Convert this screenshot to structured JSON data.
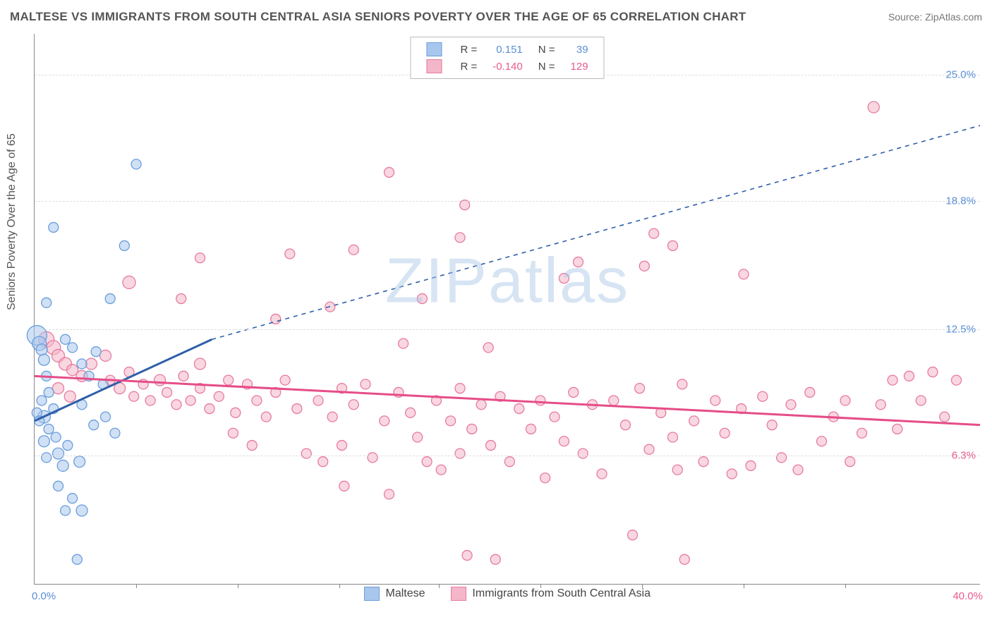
{
  "title": "MALTESE VS IMMIGRANTS FROM SOUTH CENTRAL ASIA SENIORS POVERTY OVER THE AGE OF 65 CORRELATION CHART",
  "source": "Source: ZipAtlas.com",
  "watermark_a": "ZIP",
  "watermark_b": "atlas",
  "chart": {
    "type": "scatter",
    "xlim": [
      0,
      40
    ],
    "ylim": [
      0,
      27
    ],
    "ylabel": "Seniors Poverty Over the Age of 65",
    "x_left_label": "0.0%",
    "x_right_label": "40.0%",
    "x_left_color": "#5a8fd6",
    "x_right_color": "#e85a8f",
    "xtick_positions": [
      4.3,
      8.6,
      12.9,
      17.1,
      21.4,
      25.7,
      30.0,
      34.3
    ],
    "y_gridlines": [
      {
        "value": 6.3,
        "label": "6.3%",
        "color": "#e85a8f"
      },
      {
        "value": 12.5,
        "label": "12.5%",
        "color": "#5a8fd6"
      },
      {
        "value": 18.8,
        "label": "18.8%",
        "color": "#5a8fd6"
      },
      {
        "value": 25.0,
        "label": "25.0%",
        "color": "#5a8fd6"
      }
    ],
    "grid_color": "#dddddd",
    "axis_color": "#888888",
    "background_color": "#ffffff",
    "series": [
      {
        "name": "Maltese",
        "R": "0.151",
        "N": "39",
        "fill": "#a9c7ec",
        "fill_opacity": 0.55,
        "stroke": "#6a9edc",
        "trend_color": "#2f5fa8",
        "trend_solid": {
          "x1": 0,
          "y1": 8.0,
          "x2": 7.5,
          "y2": 12.0
        },
        "trend_dashed": {
          "x1": 7.5,
          "y1": 12.0,
          "x2": 40,
          "y2": 22.5
        },
        "points": [
          {
            "x": 0.1,
            "y": 12.2,
            "r": 14
          },
          {
            "x": 0.2,
            "y": 11.8,
            "r": 10
          },
          {
            "x": 0.3,
            "y": 11.5,
            "r": 8
          },
          {
            "x": 0.4,
            "y": 11.0,
            "r": 8
          },
          {
            "x": 0.5,
            "y": 10.2,
            "r": 7
          },
          {
            "x": 0.6,
            "y": 9.4,
            "r": 7
          },
          {
            "x": 0.3,
            "y": 9.0,
            "r": 7
          },
          {
            "x": 0.4,
            "y": 8.2,
            "r": 9
          },
          {
            "x": 0.8,
            "y": 8.6,
            "r": 7
          },
          {
            "x": 0.6,
            "y": 7.6,
            "r": 7
          },
          {
            "x": 0.4,
            "y": 7.0,
            "r": 8
          },
          {
            "x": 0.9,
            "y": 7.2,
            "r": 7
          },
          {
            "x": 0.5,
            "y": 6.2,
            "r": 7
          },
          {
            "x": 1.0,
            "y": 6.4,
            "r": 8
          },
          {
            "x": 1.4,
            "y": 6.8,
            "r": 7
          },
          {
            "x": 1.2,
            "y": 5.8,
            "r": 8
          },
          {
            "x": 1.9,
            "y": 6.0,
            "r": 8
          },
          {
            "x": 1.0,
            "y": 4.8,
            "r": 7
          },
          {
            "x": 1.6,
            "y": 4.2,
            "r": 7
          },
          {
            "x": 2.0,
            "y": 3.6,
            "r": 8
          },
          {
            "x": 1.3,
            "y": 3.6,
            "r": 7
          },
          {
            "x": 1.8,
            "y": 1.2,
            "r": 7
          },
          {
            "x": 0.5,
            "y": 13.8,
            "r": 7
          },
          {
            "x": 0.8,
            "y": 17.5,
            "r": 7
          },
          {
            "x": 1.3,
            "y": 12.0,
            "r": 7
          },
          {
            "x": 1.6,
            "y": 11.6,
            "r": 7
          },
          {
            "x": 2.0,
            "y": 10.8,
            "r": 7
          },
          {
            "x": 2.3,
            "y": 10.2,
            "r": 7
          },
          {
            "x": 2.6,
            "y": 11.4,
            "r": 7
          },
          {
            "x": 2.9,
            "y": 9.8,
            "r": 7
          },
          {
            "x": 0.1,
            "y": 8.4,
            "r": 7
          },
          {
            "x": 0.2,
            "y": 8.0,
            "r": 7
          },
          {
            "x": 3.0,
            "y": 8.2,
            "r": 7
          },
          {
            "x": 3.4,
            "y": 7.4,
            "r": 7
          },
          {
            "x": 3.8,
            "y": 16.6,
            "r": 7
          },
          {
            "x": 3.2,
            "y": 14.0,
            "r": 7
          },
          {
            "x": 4.3,
            "y": 20.6,
            "r": 7
          },
          {
            "x": 2.5,
            "y": 7.8,
            "r": 7
          },
          {
            "x": 2.0,
            "y": 8.8,
            "r": 7
          }
        ]
      },
      {
        "name": "Immigrants from South Central Asia",
        "R": "-0.140",
        "N": "129",
        "fill": "#f4b6c9",
        "fill_opacity": 0.55,
        "stroke": "#e77ba0",
        "trend_color": "#e64d88",
        "trend_solid": {
          "x1": 0,
          "y1": 10.2,
          "x2": 40,
          "y2": 7.8
        },
        "points": [
          {
            "x": 0.5,
            "y": 12.0,
            "r": 11
          },
          {
            "x": 0.8,
            "y": 11.6,
            "r": 10
          },
          {
            "x": 1.0,
            "y": 11.2,
            "r": 9
          },
          {
            "x": 1.3,
            "y": 10.8,
            "r": 9
          },
          {
            "x": 1.6,
            "y": 10.5,
            "r": 8
          },
          {
            "x": 2.0,
            "y": 10.2,
            "r": 8
          },
          {
            "x": 2.4,
            "y": 10.8,
            "r": 8
          },
          {
            "x": 1.0,
            "y": 9.6,
            "r": 8
          },
          {
            "x": 1.5,
            "y": 9.2,
            "r": 8
          },
          {
            "x": 3.0,
            "y": 11.2,
            "r": 8
          },
          {
            "x": 3.2,
            "y": 10.0,
            "r": 7
          },
          {
            "x": 3.6,
            "y": 9.6,
            "r": 8
          },
          {
            "x": 4.0,
            "y": 10.4,
            "r": 7
          },
          {
            "x": 4.2,
            "y": 9.2,
            "r": 7
          },
          {
            "x": 4.6,
            "y": 9.8,
            "r": 7
          },
          {
            "x": 4.9,
            "y": 9.0,
            "r": 7
          },
          {
            "x": 5.3,
            "y": 10.0,
            "r": 8
          },
          {
            "x": 5.6,
            "y": 9.4,
            "r": 7
          },
          {
            "x": 6.0,
            "y": 8.8,
            "r": 7
          },
          {
            "x": 6.3,
            "y": 10.2,
            "r": 7
          },
          {
            "x": 6.6,
            "y": 9.0,
            "r": 7
          },
          {
            "x": 7.0,
            "y": 9.6,
            "r": 7
          },
          {
            "x": 7.4,
            "y": 8.6,
            "r": 7
          },
          {
            "x": 7.8,
            "y": 9.2,
            "r": 7
          },
          {
            "x": 8.2,
            "y": 10.0,
            "r": 7
          },
          {
            "x": 8.5,
            "y": 8.4,
            "r": 7
          },
          {
            "x": 9.0,
            "y": 9.8,
            "r": 7
          },
          {
            "x": 9.4,
            "y": 9.0,
            "r": 7
          },
          {
            "x": 9.8,
            "y": 8.2,
            "r": 7
          },
          {
            "x": 10.2,
            "y": 9.4,
            "r": 7
          },
          {
            "x": 10.6,
            "y": 10.0,
            "r": 7
          },
          {
            "x": 11.1,
            "y": 8.6,
            "r": 7
          },
          {
            "x": 11.5,
            "y": 6.4,
            "r": 7
          },
          {
            "x": 12.0,
            "y": 9.0,
            "r": 7
          },
          {
            "x": 12.2,
            "y": 6.0,
            "r": 7
          },
          {
            "x": 12.6,
            "y": 8.2,
            "r": 7
          },
          {
            "x": 13.0,
            "y": 9.6,
            "r": 7
          },
          {
            "x": 13.0,
            "y": 6.8,
            "r": 7
          },
          {
            "x": 13.1,
            "y": 4.8,
            "r": 7
          },
          {
            "x": 13.5,
            "y": 8.8,
            "r": 7
          },
          {
            "x": 14.0,
            "y": 9.8,
            "r": 7
          },
          {
            "x": 14.3,
            "y": 6.2,
            "r": 7
          },
          {
            "x": 14.8,
            "y": 8.0,
            "r": 7
          },
          {
            "x": 15.0,
            "y": 4.4,
            "r": 7
          },
          {
            "x": 15.4,
            "y": 9.4,
            "r": 7
          },
          {
            "x": 15.9,
            "y": 8.4,
            "r": 7
          },
          {
            "x": 16.2,
            "y": 7.2,
            "r": 7
          },
          {
            "x": 16.6,
            "y": 6.0,
            "r": 7
          },
          {
            "x": 17.0,
            "y": 9.0,
            "r": 7
          },
          {
            "x": 17.2,
            "y": 5.6,
            "r": 7
          },
          {
            "x": 17.6,
            "y": 8.0,
            "r": 7
          },
          {
            "x": 18.0,
            "y": 6.4,
            "r": 7
          },
          {
            "x": 18.0,
            "y": 9.6,
            "r": 7
          },
          {
            "x": 18.3,
            "y": 1.4,
            "r": 7
          },
          {
            "x": 18.5,
            "y": 7.6,
            "r": 7
          },
          {
            "x": 18.9,
            "y": 8.8,
            "r": 7
          },
          {
            "x": 19.3,
            "y": 6.8,
            "r": 7
          },
          {
            "x": 19.5,
            "y": 1.2,
            "r": 7
          },
          {
            "x": 19.7,
            "y": 9.2,
            "r": 7
          },
          {
            "x": 20.1,
            "y": 6.0,
            "r": 7
          },
          {
            "x": 20.5,
            "y": 8.6,
            "r": 7
          },
          {
            "x": 21.0,
            "y": 7.6,
            "r": 7
          },
          {
            "x": 21.4,
            "y": 9.0,
            "r": 7
          },
          {
            "x": 21.6,
            "y": 5.2,
            "r": 7
          },
          {
            "x": 22.0,
            "y": 8.2,
            "r": 7
          },
          {
            "x": 22.4,
            "y": 7.0,
            "r": 7
          },
          {
            "x": 22.8,
            "y": 9.4,
            "r": 7
          },
          {
            "x": 23.2,
            "y": 6.4,
            "r": 7
          },
          {
            "x": 23.6,
            "y": 8.8,
            "r": 7
          },
          {
            "x": 24.0,
            "y": 5.4,
            "r": 7
          },
          {
            "x": 24.5,
            "y": 9.0,
            "r": 7
          },
          {
            "x": 25.0,
            "y": 7.8,
            "r": 7
          },
          {
            "x": 25.3,
            "y": 2.4,
            "r": 7
          },
          {
            "x": 25.6,
            "y": 9.6,
            "r": 7
          },
          {
            "x": 26.0,
            "y": 6.6,
            "r": 7
          },
          {
            "x": 26.5,
            "y": 8.4,
            "r": 7
          },
          {
            "x": 27.0,
            "y": 7.2,
            "r": 7
          },
          {
            "x": 27.2,
            "y": 5.6,
            "r": 7
          },
          {
            "x": 27.4,
            "y": 9.8,
            "r": 7
          },
          {
            "x": 27.5,
            "y": 1.2,
            "r": 7
          },
          {
            "x": 27.9,
            "y": 8.0,
            "r": 7
          },
          {
            "x": 28.3,
            "y": 6.0,
            "r": 7
          },
          {
            "x": 28.8,
            "y": 9.0,
            "r": 7
          },
          {
            "x": 29.2,
            "y": 7.4,
            "r": 7
          },
          {
            "x": 29.5,
            "y": 5.4,
            "r": 7
          },
          {
            "x": 29.9,
            "y": 8.6,
            "r": 7
          },
          {
            "x": 30.3,
            "y": 5.8,
            "r": 7
          },
          {
            "x": 30.8,
            "y": 9.2,
            "r": 7
          },
          {
            "x": 31.2,
            "y": 7.8,
            "r": 7
          },
          {
            "x": 31.6,
            "y": 6.2,
            "r": 7
          },
          {
            "x": 32.0,
            "y": 8.8,
            "r": 7
          },
          {
            "x": 32.3,
            "y": 5.6,
            "r": 7
          },
          {
            "x": 32.8,
            "y": 9.4,
            "r": 7
          },
          {
            "x": 33.3,
            "y": 7.0,
            "r": 7
          },
          {
            "x": 33.8,
            "y": 8.2,
            "r": 7
          },
          {
            "x": 34.3,
            "y": 9.0,
            "r": 7
          },
          {
            "x": 35.0,
            "y": 7.4,
            "r": 7
          },
          {
            "x": 35.8,
            "y": 8.8,
            "r": 7
          },
          {
            "x": 36.3,
            "y": 10.0,
            "r": 7
          },
          {
            "x": 36.5,
            "y": 7.6,
            "r": 7
          },
          {
            "x": 37.0,
            "y": 10.2,
            "r": 7
          },
          {
            "x": 37.5,
            "y": 9.0,
            "r": 7
          },
          {
            "x": 38.0,
            "y": 10.4,
            "r": 7
          },
          {
            "x": 38.5,
            "y": 8.2,
            "r": 7
          },
          {
            "x": 39.0,
            "y": 10.0,
            "r": 7
          },
          {
            "x": 4.0,
            "y": 14.8,
            "r": 9
          },
          {
            "x": 6.2,
            "y": 14.0,
            "r": 7
          },
          {
            "x": 7.0,
            "y": 16.0,
            "r": 7
          },
          {
            "x": 10.2,
            "y": 13.0,
            "r": 7
          },
          {
            "x": 10.8,
            "y": 16.2,
            "r": 7
          },
          {
            "x": 12.5,
            "y": 13.6,
            "r": 7
          },
          {
            "x": 13.5,
            "y": 16.4,
            "r": 7
          },
          {
            "x": 15.0,
            "y": 20.2,
            "r": 7
          },
          {
            "x": 15.6,
            "y": 11.8,
            "r": 7
          },
          {
            "x": 16.4,
            "y": 14.0,
            "r": 7
          },
          {
            "x": 18.0,
            "y": 17.0,
            "r": 7
          },
          {
            "x": 18.2,
            "y": 18.6,
            "r": 7
          },
          {
            "x": 19.2,
            "y": 11.6,
            "r": 7
          },
          {
            "x": 22.4,
            "y": 15.0,
            "r": 7
          },
          {
            "x": 23.0,
            "y": 15.8,
            "r": 7
          },
          {
            "x": 25.8,
            "y": 15.6,
            "r": 7
          },
          {
            "x": 26.2,
            "y": 17.2,
            "r": 7
          },
          {
            "x": 27.0,
            "y": 16.6,
            "r": 7
          },
          {
            "x": 30.0,
            "y": 15.2,
            "r": 7
          },
          {
            "x": 35.5,
            "y": 23.4,
            "r": 8
          },
          {
            "x": 7.0,
            "y": 10.8,
            "r": 8
          },
          {
            "x": 8.4,
            "y": 7.4,
            "r": 7
          },
          {
            "x": 9.2,
            "y": 6.8,
            "r": 7
          },
          {
            "x": 34.5,
            "y": 6.0,
            "r": 7
          }
        ]
      }
    ]
  },
  "legend_bottom": {
    "a": "Maltese",
    "b": "Immigrants from South Central Asia"
  },
  "stat_labels": {
    "r": "R  =",
    "n": "N  ="
  }
}
